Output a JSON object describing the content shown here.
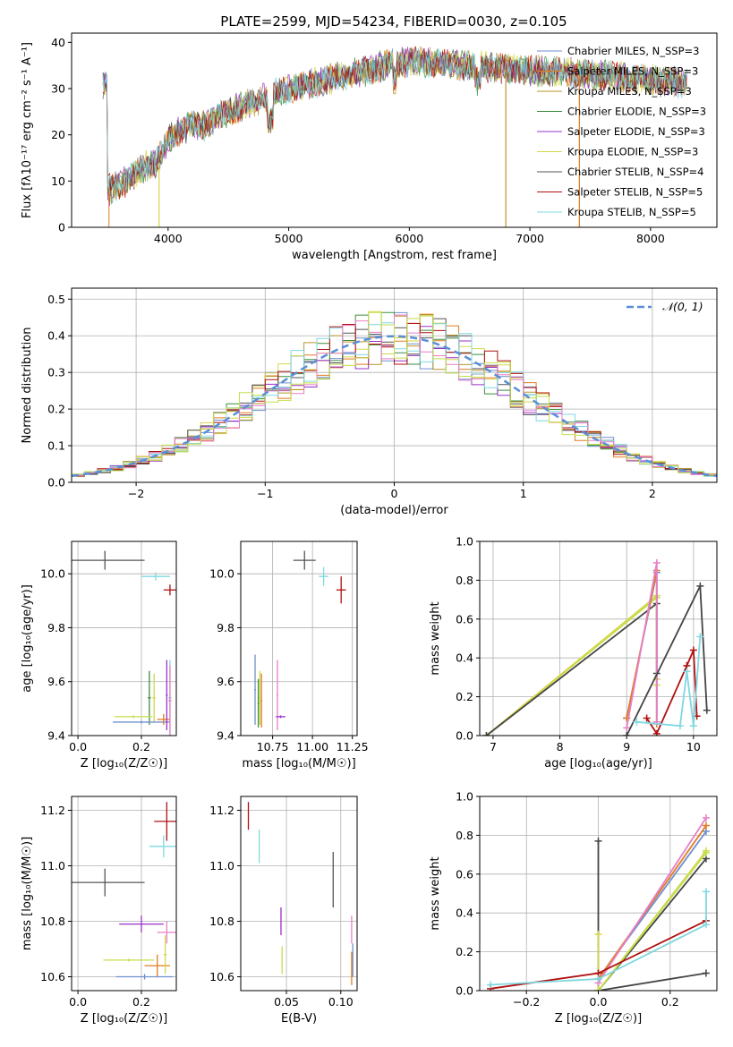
{
  "figure": {
    "title": "PLATE=2599, MJD=54234, FIBERID=0030, z=0.105"
  },
  "colors": {
    "c1": "#6f8fcf",
    "c2": "#e07b20",
    "c3": "#b8962a",
    "c4": "#3e8e3e",
    "c5": "#9b30c8",
    "c6": "#d6d64a",
    "c7": "#555555",
    "c8": "#b01010",
    "c9": "#7fd8e0",
    "c10": "#e67fc8",
    "c11": "#c2df4a",
    "c12": "#444444",
    "gauss": "#5a8fd6",
    "grid": "#b0b0b0"
  },
  "chart_data": [
    {
      "id": "spectrum",
      "type": "line",
      "xlabel": "wavelength [Angstrom, rest frame]",
      "ylabel": "Flux [fλ10⁻¹⁷ erg cm⁻² s⁻¹ A⁻¹]",
      "xlim": [
        3200,
        8550
      ],
      "ylim": [
        0,
        42
      ],
      "xticks": [
        4000,
        5000,
        6000,
        7000,
        8000
      ],
      "yticks": [
        0,
        10,
        20,
        30,
        40
      ],
      "grid": false,
      "legend_position": "right",
      "continuum": [
        [
          3500,
          8
        ],
        [
          3600,
          9
        ],
        [
          3700,
          11
        ],
        [
          3800,
          13
        ],
        [
          3900,
          14
        ],
        [
          4000,
          19
        ],
        [
          4100,
          21
        ],
        [
          4200,
          22
        ],
        [
          4300,
          22
        ],
        [
          4400,
          24
        ],
        [
          4500,
          25
        ],
        [
          4600,
          26
        ],
        [
          4700,
          27
        ],
        [
          4800,
          28
        ],
        [
          5000,
          30
        ],
        [
          5200,
          31
        ],
        [
          5500,
          33
        ],
        [
          5800,
          35
        ],
        [
          6000,
          36
        ],
        [
          6500,
          35
        ],
        [
          7000,
          34
        ],
        [
          7500,
          33
        ],
        [
          8000,
          32
        ],
        [
          8300,
          31
        ]
      ],
      "series": [
        {
          "name": "Chabrier MILES, N_SSP=3",
          "color": "c1"
        },
        {
          "name": "Salpeter MILES, N_SSP=3",
          "color": "c2"
        },
        {
          "name": "Kroupa MILES, N_SSP=3",
          "color": "c3"
        },
        {
          "name": "Chabrier ELODIE, N_SSP=3",
          "color": "c4"
        },
        {
          "name": "Salpeter ELODIE, N_SSP=3",
          "color": "c5"
        },
        {
          "name": "Kroupa ELODIE, N_SSP=3",
          "color": "c6"
        },
        {
          "name": "Chabrier STELIB, N_SSP=4",
          "color": "c7"
        },
        {
          "name": "Salpeter STELIB, N_SSP=5",
          "color": "c8"
        },
        {
          "name": "Kroupa STELIB, N_SSP=5",
          "color": "c9"
        }
      ]
    },
    {
      "id": "residuals",
      "type": "line",
      "xlabel": "(data-model)/error",
      "ylabel": "Normed distribution",
      "xlim": [
        -2.5,
        2.5
      ],
      "ylim": [
        0,
        0.53
      ],
      "xticks": [
        -2,
        -1,
        0,
        1,
        2
      ],
      "yticks": [
        0.0,
        0.1,
        0.2,
        0.3,
        0.4,
        0.5
      ],
      "grid": true,
      "legend_position": "top-right",
      "gaussian": {
        "name": "𝒩(0, 1)",
        "mean": 0,
        "sigma": 1
      }
    },
    {
      "id": "age_vs_Z",
      "type": "scatter",
      "xlabel": "Z [log₁₀(Z/Z☉)]",
      "ylabel": "age  [log₁₀(age/yr)]",
      "xlim": [
        -0.02,
        0.31
      ],
      "ylim": [
        9.4,
        10.12
      ],
      "xticks": [
        0.0,
        0.2
      ],
      "yticks": [
        9.4,
        9.6,
        9.8,
        10.0
      ],
      "grid": true,
      "points": [
        {
          "x": 0.085,
          "y": 10.05,
          "xerr": 0.125,
          "yerr": 0.035,
          "color": "c7"
        },
        {
          "x": 0.245,
          "y": 9.99,
          "xerr": 0.045,
          "yerr": 0.015,
          "color": "c9"
        },
        {
          "x": 0.29,
          "y": 9.94,
          "xerr": 0.02,
          "yerr": 0.02,
          "color": "c8"
        },
        {
          "x": 0.29,
          "y": 9.54,
          "xerr": 0.005,
          "yerr": 0.14,
          "color": "c9"
        },
        {
          "x": 0.225,
          "y": 9.54,
          "xerr": 0.005,
          "yerr": 0.1,
          "color": "c4"
        },
        {
          "x": 0.24,
          "y": 9.54,
          "xerr": 0.005,
          "yerr": 0.09,
          "color": "c6"
        },
        {
          "x": 0.175,
          "y": 9.47,
          "xerr": 0.06,
          "yerr": 0.005,
          "color": "c11"
        },
        {
          "x": 0.2,
          "y": 9.45,
          "xerr": 0.09,
          "yerr": 0.005,
          "color": "c1"
        },
        {
          "x": 0.27,
          "y": 9.46,
          "xerr": 0.02,
          "yerr": 0.02,
          "color": "c2"
        },
        {
          "x": 0.29,
          "y": 9.53,
          "xerr": 0.005,
          "yerr": 0.13,
          "color": "c10"
        },
        {
          "x": 0.28,
          "y": 9.55,
          "xerr": 0.003,
          "yerr": 0.13,
          "color": "c5"
        }
      ]
    },
    {
      "id": "age_vs_mass",
      "type": "scatter",
      "xlabel": "mass [log₁₀(M/M☉)]",
      "ylabel": "",
      "xlim": [
        10.55,
        11.28
      ],
      "ylim": [
        9.4,
        10.12
      ],
      "xticks": [
        10.75,
        11.0,
        11.25
      ],
      "yticks": [
        9.4,
        9.6,
        9.8,
        10.0
      ],
      "grid": true,
      "points": [
        {
          "x": 10.95,
          "y": 10.05,
          "xerr": 0.07,
          "yerr": 0.035,
          "color": "c7"
        },
        {
          "x": 11.07,
          "y": 9.99,
          "xerr": 0.03,
          "yerr": 0.035,
          "color": "c9"
        },
        {
          "x": 11.18,
          "y": 9.94,
          "xerr": 0.03,
          "yerr": 0.05,
          "color": "c8"
        },
        {
          "x": 10.64,
          "y": 9.57,
          "xerr": 0.005,
          "yerr": 0.13,
          "color": "c1"
        },
        {
          "x": 10.66,
          "y": 9.52,
          "xerr": 0.005,
          "yerr": 0.09,
          "color": "c4"
        },
        {
          "x": 10.67,
          "y": 9.54,
          "xerr": 0.005,
          "yerr": 0.1,
          "color": "c11"
        },
        {
          "x": 10.68,
          "y": 9.53,
          "xerr": 0.005,
          "yerr": 0.1,
          "color": "c2"
        },
        {
          "x": 10.78,
          "y": 9.55,
          "xerr": 0.005,
          "yerr": 0.13,
          "color": "c10"
        },
        {
          "x": 10.8,
          "y": 9.47,
          "xerr": 0.03,
          "yerr": 0.005,
          "color": "c5"
        }
      ]
    },
    {
      "id": "weight_vs_age",
      "type": "line",
      "xlabel": "age  [log₁₀(age/yr)]",
      "ylabel": "mass weight",
      "xlim": [
        6.8,
        10.35
      ],
      "ylim": [
        0,
        1
      ],
      "xticks": [
        7,
        8,
        9,
        10
      ],
      "yticks": [
        0.0,
        0.2,
        0.4,
        0.6,
        0.8,
        1.0
      ],
      "grid": true,
      "series": [
        {
          "color": "c11",
          "points": [
            [
              6.9,
              0.0
            ],
            [
              9.45,
              0.71
            ],
            [
              9.45,
              0.29
            ]
          ]
        },
        {
          "color": "c6",
          "points": [
            [
              6.9,
              0.0
            ],
            [
              9.45,
              0.72
            ],
            [
              9.45,
              0.26
            ]
          ]
        },
        {
          "color": "c12",
          "points": [
            [
              6.9,
              0.0
            ],
            [
              9.45,
              0.68
            ],
            [
              9.45,
              0.32
            ]
          ]
        },
        {
          "color": "c1",
          "points": [
            [
              9.0,
              0.09
            ],
            [
              9.45,
              0.84
            ],
            [
              9.45,
              0.07
            ]
          ]
        },
        {
          "color": "c2",
          "points": [
            [
              9.0,
              0.09
            ],
            [
              9.45,
              0.85
            ],
            [
              9.45,
              0.06
            ]
          ]
        },
        {
          "color": "c10",
          "points": [
            [
              9.0,
              0.04
            ],
            [
              9.45,
              0.89
            ],
            [
              9.45,
              0.07
            ]
          ]
        },
        {
          "color": "c12",
          "points": [
            [
              9.0,
              0.0
            ],
            [
              10.1,
              0.77
            ],
            [
              10.2,
              0.13
            ]
          ]
        },
        {
          "color": "c8",
          "points": [
            [
              9.3,
              0.09
            ],
            [
              9.45,
              0.01
            ],
            [
              9.9,
              0.36
            ],
            [
              10.0,
              0.44
            ],
            [
              10.05,
              0.1
            ]
          ]
        },
        {
          "color": "c9",
          "points": [
            [
              9.15,
              0.07
            ],
            [
              9.8,
              0.05
            ],
            [
              9.9,
              0.33
            ],
            [
              10.0,
              0.05
            ],
            [
              10.1,
              0.51
            ]
          ]
        }
      ]
    },
    {
      "id": "mass_vs_Z",
      "type": "scatter",
      "xlabel": "Z [log₁₀(Z/Z☉)]",
      "ylabel": "mass [log₁₀(M/M☉)]",
      "xlim": [
        -0.02,
        0.31
      ],
      "ylim": [
        10.55,
        11.25
      ],
      "xticks": [
        0.0,
        0.2
      ],
      "yticks": [
        10.6,
        10.8,
        11.0,
        11.2
      ],
      "grid": true,
      "points": [
        {
          "x": 0.085,
          "y": 10.94,
          "xerr": 0.125,
          "yerr": 0.05,
          "color": "c7"
        },
        {
          "x": 0.28,
          "y": 11.16,
          "xerr": 0.04,
          "yerr": 0.07,
          "color": "c8"
        },
        {
          "x": 0.27,
          "y": 11.07,
          "xerr": 0.045,
          "yerr": 0.04,
          "color": "c9"
        },
        {
          "x": 0.2,
          "y": 10.79,
          "xerr": 0.07,
          "yerr": 0.03,
          "color": "c5"
        },
        {
          "x": 0.28,
          "y": 10.76,
          "xerr": 0.03,
          "yerr": 0.04,
          "color": "c10"
        },
        {
          "x": 0.16,
          "y": 10.66,
          "xerr": 0.08,
          "yerr": 0.005,
          "color": "c11"
        },
        {
          "x": 0.25,
          "y": 10.64,
          "xerr": 0.04,
          "yerr": 0.04,
          "color": "c2"
        },
        {
          "x": 0.21,
          "y": 10.6,
          "xerr": 0.09,
          "yerr": 0.01,
          "color": "c1"
        },
        {
          "x": 0.275,
          "y": 10.68,
          "xerr": 0.005,
          "yerr": 0.07,
          "color": "c6"
        }
      ]
    },
    {
      "id": "mass_vs_ebv",
      "type": "scatter",
      "xlabel": "E(B-V)",
      "ylabel": "",
      "xlim": [
        0.008,
        0.115
      ],
      "ylim": [
        10.55,
        11.25
      ],
      "xticks": [
        0.05,
        0.1
      ],
      "yticks": [
        10.6,
        10.8,
        11.0,
        11.2
      ],
      "grid": true,
      "points": [
        {
          "x": 0.015,
          "y": 11.18,
          "xerr": 0.0,
          "yerr": 0.05,
          "color": "c8"
        },
        {
          "x": 0.025,
          "y": 11.07,
          "xerr": 0.0,
          "yerr": 0.06,
          "color": "c9"
        },
        {
          "x": 0.045,
          "y": 10.8,
          "xerr": 0.0,
          "yerr": 0.05,
          "color": "c5"
        },
        {
          "x": 0.046,
          "y": 10.66,
          "xerr": 0.0,
          "yerr": 0.05,
          "color": "c11"
        },
        {
          "x": 0.093,
          "y": 10.95,
          "xerr": 0.0,
          "yerr": 0.1,
          "color": "c7"
        },
        {
          "x": 0.11,
          "y": 10.77,
          "xerr": 0.0,
          "yerr": 0.05,
          "color": "c10"
        },
        {
          "x": 0.11,
          "y": 10.63,
          "xerr": 0.0,
          "yerr": 0.06,
          "color": "c2"
        },
        {
          "x": 0.111,
          "y": 10.66,
          "xerr": 0.0,
          "yerr": 0.06,
          "color": "c1"
        }
      ]
    },
    {
      "id": "weight_vs_Z",
      "type": "line",
      "xlabel": "Z [log₁₀(Z/Z☉)]",
      "ylabel": "mass weight",
      "xlim": [
        -0.33,
        0.33
      ],
      "ylim": [
        0,
        1
      ],
      "xticks": [
        -0.2,
        0.0,
        0.2
      ],
      "yticks": [
        0.0,
        0.2,
        0.4,
        0.6,
        0.8,
        1.0
      ],
      "grid": true,
      "series": [
        {
          "color": "c12",
          "points": [
            [
              0.0,
              0.77
            ],
            [
              0.0,
              0.0
            ],
            [
              0.3,
              0.09
            ]
          ]
        },
        {
          "color": "c12",
          "points": [
            [
              0.0,
              0.0
            ],
            [
              0.3,
              0.68
            ]
          ]
        },
        {
          "color": "c6",
          "points": [
            [
              0.0,
              0.29
            ],
            [
              0.0,
              0.0
            ],
            [
              0.3,
              0.72
            ]
          ]
        },
        {
          "color": "c11",
          "points": [
            [
              0.0,
              0.0
            ],
            [
              0.3,
              0.71
            ]
          ]
        },
        {
          "color": "c1",
          "points": [
            [
              0.0,
              0.06
            ],
            [
              0.3,
              0.82
            ]
          ]
        },
        {
          "color": "c2",
          "points": [
            [
              0.0,
              0.06
            ],
            [
              0.3,
              0.85
            ]
          ]
        },
        {
          "color": "c10",
          "points": [
            [
              0.0,
              0.04
            ],
            [
              0.3,
              0.89
            ]
          ]
        },
        {
          "color": "c8",
          "points": [
            [
              -0.3,
              0.01
            ],
            [
              0.0,
              0.09
            ],
            [
              0.3,
              0.36
            ]
          ]
        },
        {
          "color": "c9",
          "points": [
            [
              -0.3,
              0.03
            ],
            [
              0.0,
              0.06
            ],
            [
              0.3,
              0.34
            ],
            [
              0.3,
              0.51
            ]
          ]
        }
      ]
    }
  ]
}
